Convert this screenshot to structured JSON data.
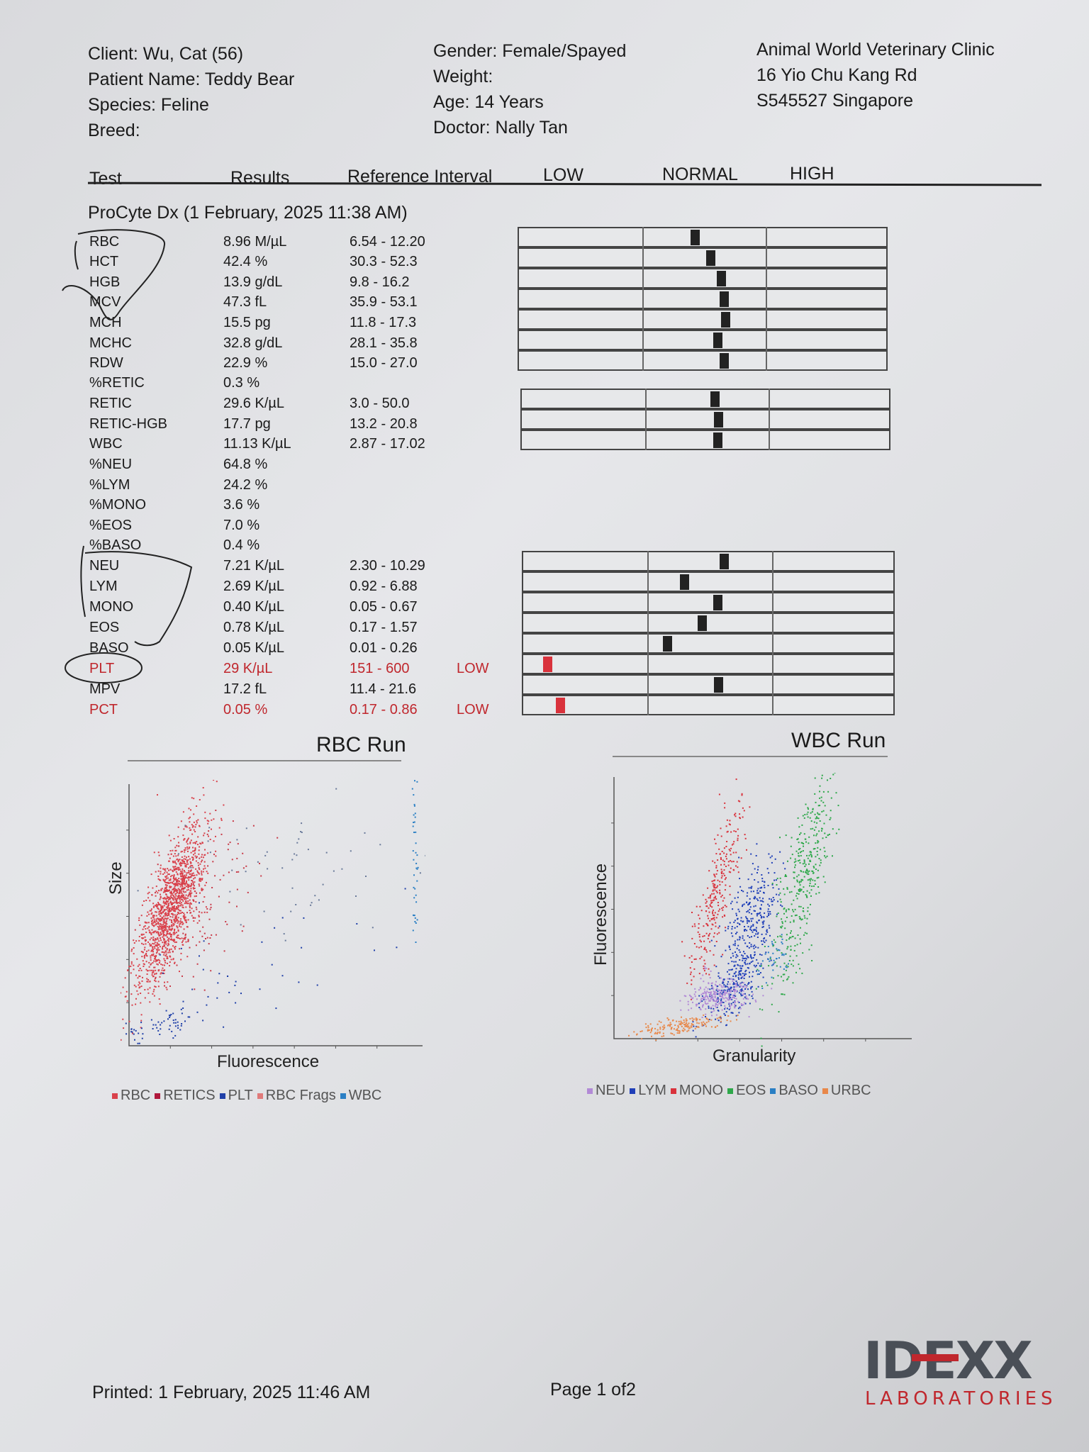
{
  "header": {
    "left": [
      "Client: Wu, Cat (56)",
      "Patient Name: Teddy Bear",
      "Species: Feline",
      "Breed:"
    ],
    "middle": [
      "Gender: Female/Spayed",
      "Weight:",
      "Age: 14 Years",
      "Doctor: Nally Tan"
    ],
    "right": [
      "Animal World Veterinary Clinic",
      "16 Yio Chu Kang Rd",
      "S545527 Singapore"
    ]
  },
  "columns": {
    "test": "Test",
    "results": "Results",
    "reference": "Reference Interval",
    "low": "LOW",
    "normal": "NORMAL",
    "high": "HIGH"
  },
  "section_title": "ProCyte Dx (1 February, 2025 11:38 AM)",
  "rows": [
    {
      "test": "RBC",
      "result": "8.96 M/µL",
      "ref": "6.54 - 12.20",
      "flag": ""
    },
    {
      "test": "HCT",
      "result": "42.4 %",
      "ref": "30.3 - 52.3",
      "flag": ""
    },
    {
      "test": "HGB",
      "result": "13.9 g/dL",
      "ref": "9.8 - 16.2",
      "flag": ""
    },
    {
      "test": "MCV",
      "result": "47.3 fL",
      "ref": "35.9 - 53.1",
      "flag": ""
    },
    {
      "test": "MCH",
      "result": "15.5 pg",
      "ref": "11.8 - 17.3",
      "flag": ""
    },
    {
      "test": "MCHC",
      "result": "32.8 g/dL",
      "ref": "28.1 - 35.8",
      "flag": ""
    },
    {
      "test": "RDW",
      "result": "22.9 %",
      "ref": "15.0 - 27.0",
      "flag": ""
    },
    {
      "test": "%RETIC",
      "result": "0.3 %",
      "ref": "",
      "flag": ""
    },
    {
      "test": "RETIC",
      "result": "29.6 K/µL",
      "ref": "3.0 - 50.0",
      "flag": ""
    },
    {
      "test": "RETIC-HGB",
      "result": "17.7 pg",
      "ref": "13.2 - 20.8",
      "flag": ""
    },
    {
      "test": "WBC",
      "result": "11.13 K/µL",
      "ref": "2.87 - 17.02",
      "flag": ""
    },
    {
      "test": "%NEU",
      "result": "64.8 %",
      "ref": "",
      "flag": ""
    },
    {
      "test": "%LYM",
      "result": "24.2 %",
      "ref": "",
      "flag": ""
    },
    {
      "test": "%MONO",
      "result": "3.6 %",
      "ref": "",
      "flag": ""
    },
    {
      "test": "%EOS",
      "result": "7.0 %",
      "ref": "",
      "flag": ""
    },
    {
      "test": "%BASO",
      "result": "0.4 %",
      "ref": "",
      "flag": ""
    },
    {
      "test": "NEU",
      "result": "7.21 K/µL",
      "ref": "2.30 - 10.29",
      "flag": ""
    },
    {
      "test": "LYM",
      "result": "2.69 K/µL",
      "ref": "0.92 - 6.88",
      "flag": ""
    },
    {
      "test": "MONO",
      "result": "0.40 K/µL",
      "ref": "0.05 - 0.67",
      "flag": ""
    },
    {
      "test": "EOS",
      "result": "0.78 K/µL",
      "ref": "0.17 - 1.57",
      "flag": ""
    },
    {
      "test": "BASO",
      "result": "0.05 K/µL",
      "ref": "0.01 - 0.26",
      "flag": ""
    },
    {
      "test": "PLT",
      "result": "29 K/µL",
      "ref": "151 - 600",
      "flag": "LOW"
    },
    {
      "test": "MPV",
      "result": "17.2 fL",
      "ref": "11.4 - 21.6",
      "flag": ""
    },
    {
      "test": "PCT",
      "result": "0.05 %",
      "ref": "0.17 - 0.86",
      "flag": "LOW"
    }
  ],
  "rbc_plot": {
    "title": "RBC Run",
    "xlabel": "Fluorescence",
    "ylabel": "Size",
    "legend": [
      {
        "label": "RBC",
        "color": "#d9414b"
      },
      {
        "label": "RETICS",
        "color": "#b0183c"
      },
      {
        "label": "PLT",
        "color": "#1f3fa8"
      },
      {
        "label": "RBC Frags",
        "color": "#e07a7a"
      },
      {
        "label": "WBC",
        "color": "#2a7fc4"
      }
    ]
  },
  "wbc_plot": {
    "title": "WBC Run",
    "xlabel": "Granularity",
    "ylabel": "Fluorescence",
    "legend": [
      {
        "label": "NEU",
        "color": "#b28ad6"
      },
      {
        "label": "LYM",
        "color": "#1f3fb8"
      },
      {
        "label": "MONO",
        "color": "#d9323c"
      },
      {
        "label": "EOS",
        "color": "#2ea84a"
      },
      {
        "label": "BASO",
        "color": "#2a7fc4"
      },
      {
        "label": "URBC",
        "color": "#e8884a"
      }
    ]
  },
  "footer": {
    "printed": "Printed: 1 February, 2025 11:46 AM",
    "page": "Page 1 of2"
  },
  "logo": {
    "name": "IDEXX",
    "sub": "LABORATORIES"
  }
}
